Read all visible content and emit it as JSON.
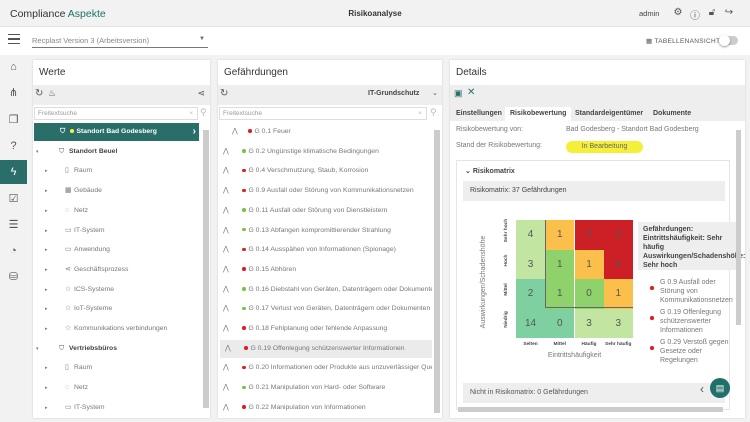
{
  "header": {
    "logo_part1": "Compliance ",
    "logo_part2": "Aspekte",
    "title": "Risikoanalyse",
    "user": "admin",
    "icons": [
      "gear-icon",
      "help-icon",
      "lock-icon",
      "logout-icon"
    ]
  },
  "toolbar": {
    "version_select": "Recplast Version 3 (Arbeitsversion)",
    "table_view_label": "TABELLENANSICHT",
    "table_view_on": false
  },
  "sidebar": {
    "icons": [
      "dashboard-icon",
      "tree-icon",
      "checklist-icon",
      "question-icon",
      "lightning-icon",
      "clipboard-check-icon",
      "report-icon",
      "chart-pie-icon",
      "database-icon"
    ],
    "active": 4
  },
  "werte": {
    "title": "Werte",
    "search_placeholder": "Freitextsuche",
    "items": [
      {
        "label": "Standort Bad Godesberg",
        "level": 0,
        "selected": true,
        "icon": "shield-icon"
      },
      {
        "label": "Standort Beuel",
        "level": 0,
        "icon": "shield-icon",
        "expanded": true
      },
      {
        "label": "Raum",
        "level": 1,
        "icon": "door-icon"
      },
      {
        "label": "Gebäude",
        "level": 1,
        "icon": "building-icon"
      },
      {
        "label": "Netz",
        "level": 1,
        "icon": "network-icon"
      },
      {
        "label": "IT-System",
        "level": 1,
        "icon": "computer-icon"
      },
      {
        "label": "Anwendung",
        "level": 1,
        "icon": "window-icon"
      },
      {
        "label": "Geschäftsprozess",
        "level": 1,
        "icon": "share-icon"
      },
      {
        "label": "ICS-Systeme",
        "level": 1,
        "icon": "star-icon"
      },
      {
        "label": "IoT-Systeme",
        "level": 1,
        "icon": "star-icon"
      },
      {
        "label": "Kommunikations verbindungen",
        "level": 1,
        "icon": "star-icon"
      },
      {
        "label": "Vertriebsbüros",
        "level": 0,
        "icon": "shield-icon",
        "expanded": true
      },
      {
        "label": "Raum",
        "level": 1,
        "icon": "door-icon"
      },
      {
        "label": "Netz",
        "level": 1,
        "icon": "network-icon"
      },
      {
        "label": "IT-System",
        "level": 1,
        "icon": "computer-icon"
      }
    ]
  },
  "gefaehrdungen": {
    "title": "Gefährdungen",
    "filter": "IT-Grundschutz",
    "search_placeholder": "Freitextsuche",
    "items": [
      {
        "label": "G 0.1 Feuer",
        "status": "red"
      },
      {
        "label": "G 0.2 Ungünstige klimatische Bedingungen",
        "status": "green"
      },
      {
        "label": "G 0.4 Verschmutzung, Staub, Korrosion",
        "status": "red"
      },
      {
        "label": "G 0.9 Ausfall oder Störung von Kommunikationsnetzen",
        "status": "red"
      },
      {
        "label": "G 0.11 Ausfall oder Störung von Dienstleistern",
        "status": "green"
      },
      {
        "label": "G 0.13 Abfangen kompromittierender Strahlung",
        "status": "green"
      },
      {
        "label": "G 0.14 Ausspähen von Informationen (Spionage)",
        "status": "red"
      },
      {
        "label": "G 0.15 Abhören",
        "status": "red"
      },
      {
        "label": "G 0.16 Diebstahl von Geräten, Datenträgern oder Dokumenten",
        "status": "green"
      },
      {
        "label": "G 0.17 Verlust von Geräten, Datenträgern oder Dokumenten",
        "status": "green"
      },
      {
        "label": "G 0.18 Fehlplanung oder fehlende Anpassung",
        "status": "red"
      },
      {
        "label": "G 0.19 Offenlegung schützenswerter Informationen",
        "status": "red",
        "selected": true
      },
      {
        "label": "G 0.20 Informationen oder Produkte aus unzuverlässiger Que...",
        "status": "red"
      },
      {
        "label": "G 0.21 Manipulation von Hard- oder Software",
        "status": "green"
      },
      {
        "label": "G 0.22 Manipulation von Informationen",
        "status": "red"
      }
    ]
  },
  "details": {
    "title": "Details",
    "tabs": [
      "Einstellungen",
      "Risikobewertung",
      "Standardeigentümer",
      "Dokumente"
    ],
    "active_tab": 1,
    "von_label": "Risikobewertung von:",
    "von_value": "Bad Godesberg - Standort Bad Godesberg",
    "stand_label": "Stand der Risikobewertung:",
    "stand_value": "In Bearbeitung",
    "section": "Risikomatrix",
    "matrix_title": "Risikomatrix: 37 Gefährdungen",
    "not_in_matrix": "Nicht in Risikomatrix: 0 Gefährdungen",
    "tooltip": {
      "line1": "Gefährdungen:",
      "line2": "Eintrittshäufigkeit: Sehr häufig",
      "line3": "Auswirkungen/Schadenshöhe: Sehr hoch",
      "items": [
        "G 0.9 Ausfall oder Störung von Kommunikationsnetzen",
        "G 0.19 Offenlegung schützenswerter Informationen",
        "G 0.29 Verstoß gegen Gesetze oder Regelungen"
      ]
    }
  },
  "chart_data": {
    "type": "heatmap",
    "xlabel": "Eintrittshäufigkeit",
    "ylabel": "Auswirkungen/Schadenshöhe",
    "x_categories": [
      "Selten",
      "Mittel",
      "Häufig",
      "Sehr häufig"
    ],
    "y_categories": [
      "Sehr hoch",
      "Hoch",
      "Mittel",
      "Niedrig"
    ],
    "values": [
      [
        4,
        1,
        0,
        3
      ],
      [
        3,
        1,
        1,
        0
      ],
      [
        2,
        1,
        0,
        1
      ],
      [
        14,
        0,
        3,
        3
      ]
    ],
    "cell_colors": [
      [
        "#c2e5a2",
        "#fbbf4c",
        "#cc1f26",
        "#cc1f26"
      ],
      [
        "#c2e5a2",
        "#8fd16a",
        "#fbbf4c",
        "#cc1f26"
      ],
      [
        "#7fd0a0",
        "#8fd16a",
        "#8fd16a",
        "#fbbf4c"
      ],
      [
        "#7fd0a0",
        "#7fd0a0",
        "#c2e5a2",
        "#c2e5a2"
      ]
    ]
  },
  "colors": {
    "accent": "#2a6e6a",
    "status_red": "#e01e1e",
    "status_green": "#7cc242",
    "badge": "#f5ef3a"
  }
}
